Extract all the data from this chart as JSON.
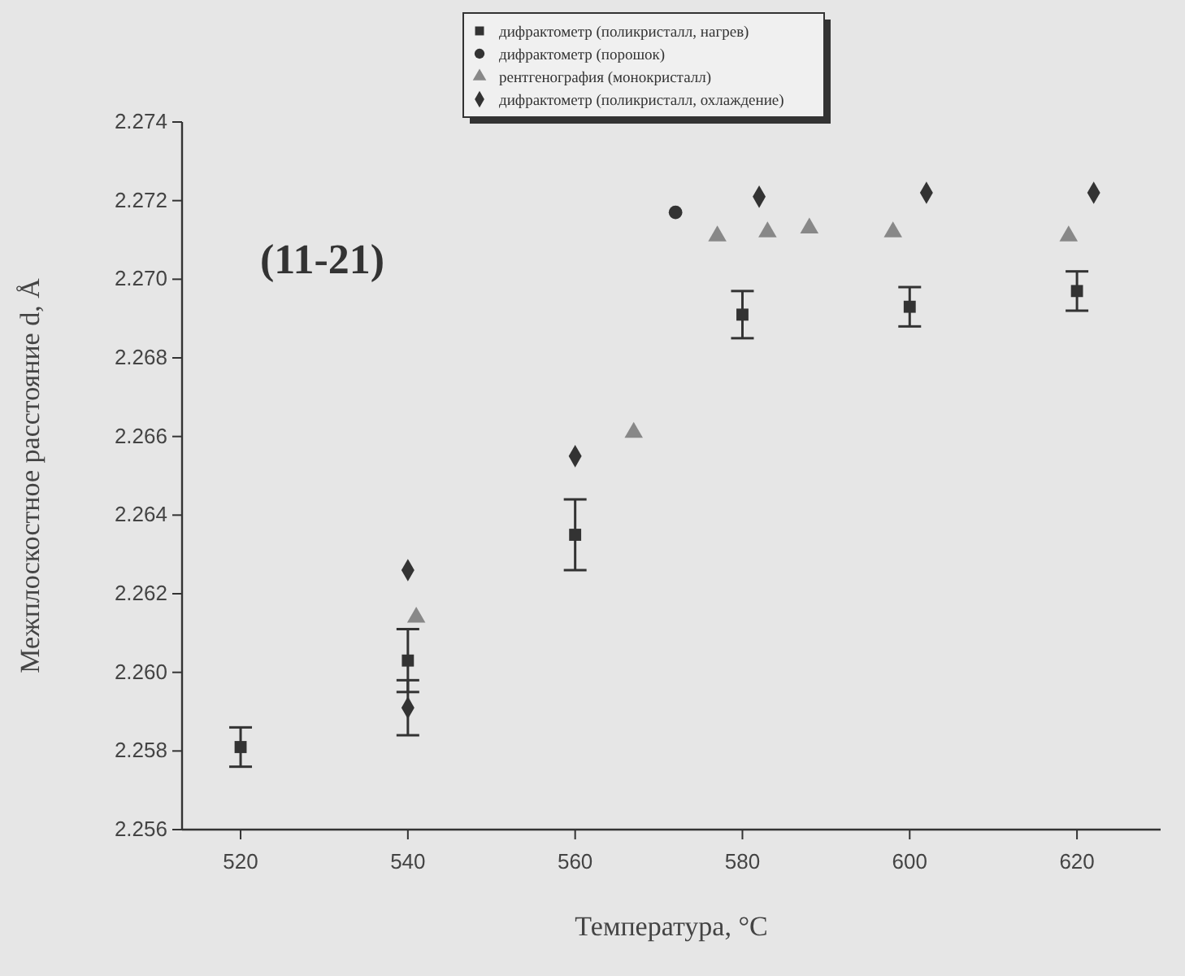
{
  "chart_data": {
    "type": "scatter",
    "xlabel": "Температура, °C",
    "ylabel": "Межплоскостное расстояние d, Å",
    "annotations": [
      "(11-21)"
    ],
    "xlim": [
      513,
      630
    ],
    "ylim": [
      2.256,
      2.274
    ],
    "xticks": [
      520,
      540,
      560,
      580,
      600,
      620
    ],
    "yticks": [
      {
        "value": 2.256,
        "label": "2.256"
      },
      {
        "value": 2.258,
        "label": "2.258"
      },
      {
        "value": 2.26,
        "label": "2.260"
      },
      {
        "value": 2.262,
        "label": "2.262"
      },
      {
        "value": 2.264,
        "label": "2.264"
      },
      {
        "value": 2.266,
        "label": "2.266"
      },
      {
        "value": 2.268,
        "label": "2.268"
      },
      {
        "value": 2.27,
        "label": "2.270"
      },
      {
        "value": 2.272,
        "label": "2.272"
      },
      {
        "value": 2.274,
        "label": "2.274"
      }
    ],
    "legend": "top",
    "grid": false,
    "series": [
      {
        "name": "дифрактометр (поликристалл, нагрев)",
        "color": "#333333",
        "marker": "square",
        "x": [
          520,
          540,
          560,
          580,
          600,
          620
        ],
        "values": [
          2.2581,
          2.2603,
          2.2635,
          2.2691,
          2.2693,
          2.2697
        ],
        "errors": [
          0.0005,
          0.0008,
          0.0009,
          0.0006,
          0.0005,
          0.0005
        ]
      },
      {
        "name": "дифрактометр (порошок)",
        "color": "#333333",
        "marker": "circle",
        "x": [
          572
        ],
        "values": [
          2.2717
        ]
      },
      {
        "name": "рентгенография (монокристалл)",
        "color": "#888888",
        "marker": "triangle",
        "x": [
          541,
          567,
          577,
          583,
          588,
          598,
          619
        ],
        "values": [
          2.2614,
          2.2661,
          2.2711,
          2.2712,
          2.2713,
          2.2712,
          2.2711
        ]
      },
      {
        "name": "дифрактометр (поликристалл, охлаждение)",
        "color": "#333333",
        "marker": "diamond",
        "x": [
          540,
          540,
          560,
          582,
          602,
          622
        ],
        "values": [
          2.2626,
          2.2591,
          2.2655,
          2.2721,
          2.2722,
          2.2722
        ],
        "errors": [
          null,
          0.0007,
          null,
          null,
          null,
          null
        ]
      }
    ]
  }
}
